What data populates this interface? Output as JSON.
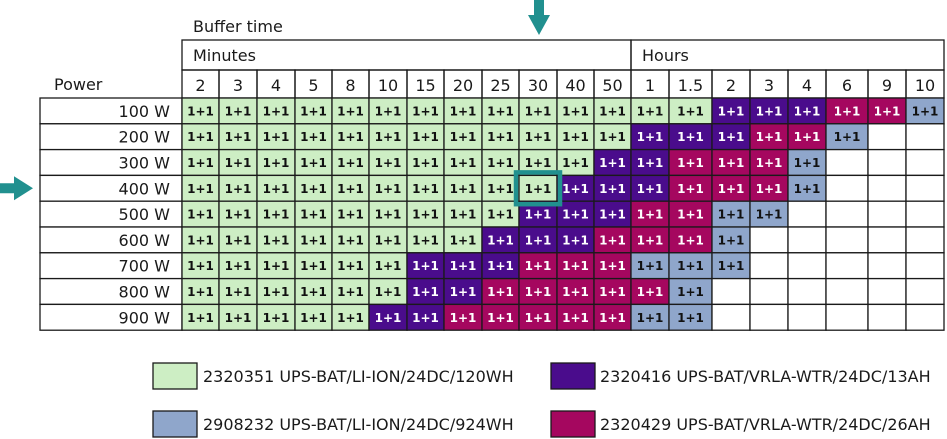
{
  "chart_data": {
    "type": "table",
    "title": "Buffer time",
    "row_header": "Power",
    "groups": [
      {
        "label": "Minutes"
      },
      {
        "label": "Hours"
      }
    ],
    "columns": [
      "2",
      "3",
      "4",
      "5",
      "8",
      "10",
      "15",
      "20",
      "25",
      "30",
      "40",
      "50",
      "1",
      "1.5",
      "2",
      "3",
      "4",
      "6",
      "9",
      "10"
    ],
    "rows": [
      "100 W",
      "200 W",
      "300 W",
      "400 W",
      "500 W",
      "600 W",
      "700 W",
      "800 W",
      "900 W"
    ],
    "cell_text": "1+1",
    "grid": [
      "GGGGGGGGGGGGGGPPPMMB",
      "GGGGGGGGGGGGPPPMMB..",
      "GGGGGGGGGGGPPMMMB...",
      "GGGGGGGGGGPPPMMMB...",
      "GGGGGGGGGPPPMMBB....",
      "GGGGGGGGPPPMMMB.....",
      "GGGGGGPPPMMMBBB.....",
      "GGGGGGPPMMMMMB......",
      "GGGGGPPMMMMMBB......"
    ],
    "key": {
      "G": "2320351 UPS-BAT/LI-ION/24DC/120WH",
      "B": "2908232 UPS-BAT/LI-ION/24DC/924WH",
      "P": "2320416 UPS-BAT/VRLA-WTR/24DC/13AH",
      "M": "2320429 UPS-BAT/VRLA-WTR/24DC/26AH"
    },
    "highlight": {
      "row": "400 W",
      "column": "30"
    }
  },
  "legend": [
    {
      "code": "G",
      "label": "2320351 UPS-BAT/LI-ION/24DC/120WH"
    },
    {
      "code": "P",
      "label": "2320416 UPS-BAT/VRLA-WTR/24DC/13AH"
    },
    {
      "code": "B",
      "label": "2908232 UPS-BAT/LI-ION/24DC/924WH"
    },
    {
      "code": "M",
      "label": "2320429 UPS-BAT/VRLA-WTR/24DC/26AH"
    }
  ],
  "colors": {
    "G": "#cdeec4",
    "B": "#8fa6cb",
    "P": "#4a0c8c",
    "M": "#a5075f",
    "empty": "#ffffff",
    "arrow": "#21908f",
    "highlight": "#21908f"
  }
}
